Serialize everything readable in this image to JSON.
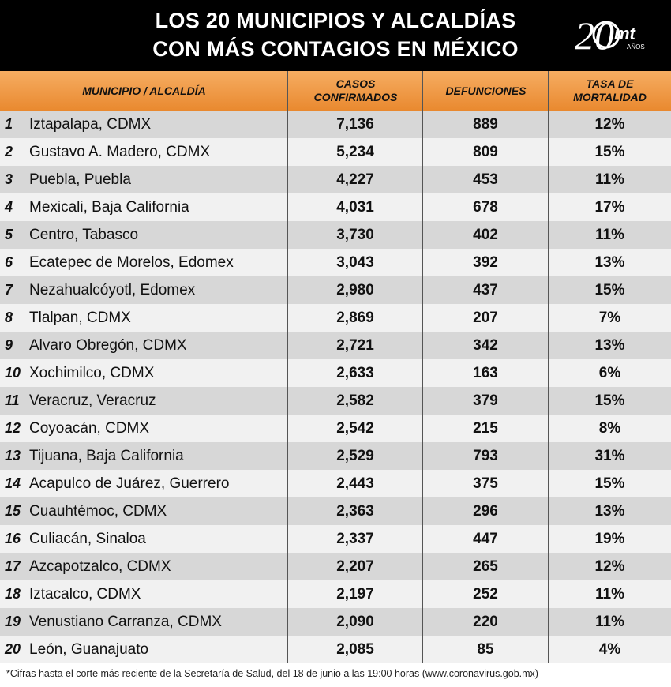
{
  "title": {
    "line1": "LOS 20 MUNICIPIOS Y ALCALDÍAS",
    "line2": "CON MÁS CONTAGIOS EN MÉXICO"
  },
  "logo": {
    "number": "20",
    "brand": "mt",
    "sub": "AÑOS"
  },
  "colors": {
    "header": "#f09a45",
    "title_bg": "#000000",
    "row_dark": "#d7d7d7",
    "row_light": "#f1f1f1"
  },
  "headers": {
    "municipio": "MUNICIPIO / ALCALDÍA",
    "casos_1": "CASOS",
    "casos_2": "CONFIRMADOS",
    "defunciones": "DEFUNCIONES",
    "tasa_1": "TASA DE",
    "tasa_2": "MORTALIDAD"
  },
  "rows": [
    {
      "n": "1",
      "name": "Iztapalapa, CDMX",
      "cases": "7,136",
      "deaths": "889",
      "rate": "12%"
    },
    {
      "n": "2",
      "name": "Gustavo A. Madero, CDMX",
      "cases": "5,234",
      "deaths": "809",
      "rate": "15%"
    },
    {
      "n": "3",
      "name": "Puebla, Puebla",
      "cases": "4,227",
      "deaths": "453",
      "rate": "11%"
    },
    {
      "n": "4",
      "name": "Mexicali, Baja California",
      "cases": "4,031",
      "deaths": "678",
      "rate": "17%"
    },
    {
      "n": "5",
      "name": "Centro, Tabasco",
      "cases": "3,730",
      "deaths": "402",
      "rate": "11%"
    },
    {
      "n": "6",
      "name": "Ecatepec de Morelos, Edomex",
      "cases": "3,043",
      "deaths": "392",
      "rate": "13%"
    },
    {
      "n": "7",
      "name": "Nezahualcóyotl, Edomex",
      "cases": "2,980",
      "deaths": "437",
      "rate": "15%"
    },
    {
      "n": "8",
      "name": "Tlalpan, CDMX",
      "cases": "2,869",
      "deaths": "207",
      "rate": "7%"
    },
    {
      "n": "9",
      "name": "Alvaro Obregón, CDMX",
      "cases": "2,721",
      "deaths": "342",
      "rate": "13%"
    },
    {
      "n": "10",
      "name": "Xochimilco, CDMX",
      "cases": "2,633",
      "deaths": "163",
      "rate": "6%"
    },
    {
      "n": "11",
      "name": "Veracruz, Veracruz",
      "cases": "2,582",
      "deaths": "379",
      "rate": "15%"
    },
    {
      "n": "12",
      "name": "Coyoacán, CDMX",
      "cases": "2,542",
      "deaths": "215",
      "rate": "8%"
    },
    {
      "n": "13",
      "name": "Tijuana, Baja California",
      "cases": "2,529",
      "deaths": "793",
      "rate": "31%"
    },
    {
      "n": "14",
      "name": "Acapulco de Juárez, Guerrero",
      "cases": "2,443",
      "deaths": "375",
      "rate": "15%"
    },
    {
      "n": "15",
      "name": "Cuauhtémoc, CDMX",
      "cases": "2,363",
      "deaths": "296",
      "rate": "13%"
    },
    {
      "n": "16",
      "name": "Culiacán, Sinaloa",
      "cases": "2,337",
      "deaths": "447",
      "rate": "19%"
    },
    {
      "n": "17",
      "name": "Azcapotzalco, CDMX",
      "cases": "2,207",
      "deaths": "265",
      "rate": "12%"
    },
    {
      "n": "18",
      "name": "Iztacalco, CDMX",
      "cases": "2,197",
      "deaths": "252",
      "rate": "11%"
    },
    {
      "n": "19",
      "name": "Venustiano Carranza, CDMX",
      "cases": "2,090",
      "deaths": "220",
      "rate": "11%"
    },
    {
      "n": "20",
      "name": "León, Guanajuato",
      "cases": "2,085",
      "deaths": "85",
      "rate": "4%"
    }
  ],
  "footnote": "*Cifras hasta el corte más reciente de la Secretaría de Salud, del 18 de junio a las 19:00 horas (www.coronavirus.gob.mx)"
}
